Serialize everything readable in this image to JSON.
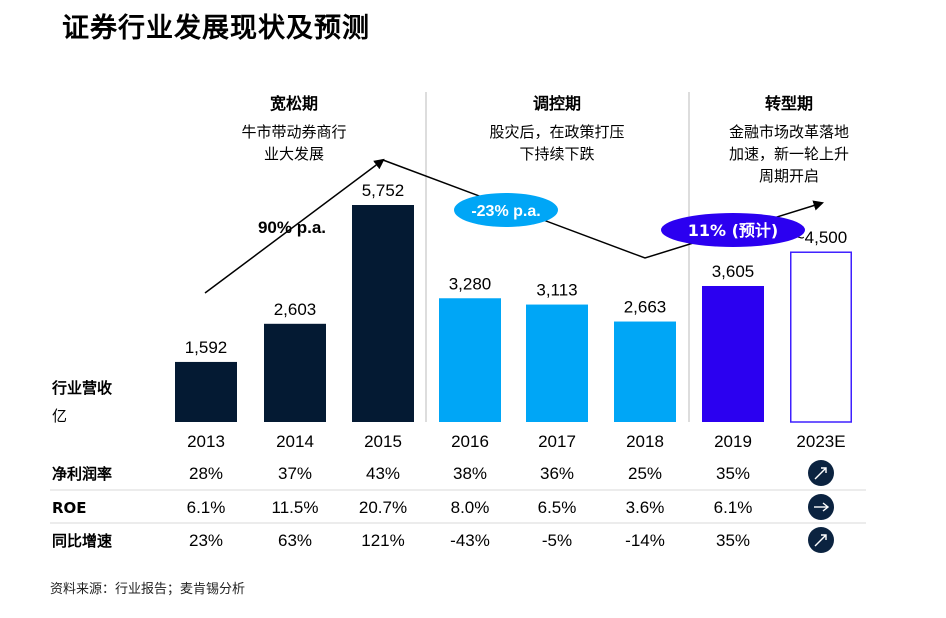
{
  "title": "证券行业发展现状及预测",
  "source": "资料来源：行业报告；麦肯锡分析",
  "colors": {
    "dark": "#041A33",
    "light": "#00A6F6",
    "forecast": "#2B00F0",
    "outline": "#3F20FF",
    "grey_line": "#BBBBBB"
  },
  "phases": [
    {
      "name": "宽松期",
      "desc": [
        "牛市带动券商行",
        "业大发展"
      ],
      "rate": "90% p.a."
    },
    {
      "name": "调控期",
      "desc": [
        "股灾后，在政策打压",
        "下持续下跌"
      ],
      "rate": "-23% p.a."
    },
    {
      "name": "转型期",
      "desc": [
        "金融市场改革落地",
        "加速，新一轮上升",
        "周期开启"
      ],
      "rate": "11% (预计)"
    }
  ],
  "chart_data": {
    "type": "bar",
    "ylabel": [
      "行业营收",
      "亿"
    ],
    "categories": [
      "2013",
      "2014",
      "2015",
      "2016",
      "2017",
      "2018",
      "2019",
      "2023E"
    ],
    "values": [
      1592,
      2603,
      5752,
      3280,
      3113,
      2663,
      3605,
      4500
    ],
    "value_labels": [
      "1,592",
      "2,603",
      "5,752",
      "3,280",
      "3,113",
      "2,663",
      "3,605",
      "~4,500"
    ],
    "bar_styles": [
      "dark",
      "dark",
      "dark",
      "light",
      "light",
      "light",
      "forecast",
      "outline"
    ],
    "ylim": [
      0,
      6000
    ]
  },
  "table": {
    "rows": [
      {
        "label": "净利润率",
        "values": [
          "28%",
          "37%",
          "43%",
          "38%",
          "36%",
          "25%",
          "35%"
        ],
        "icon": "arrow-up-right-icon"
      },
      {
        "label": "ROE",
        "values": [
          "6.1%",
          "11.5%",
          "20.7%",
          "8.0%",
          "6.5%",
          "3.6%",
          "6.1%"
        ],
        "icon": "arrow-right-icon"
      },
      {
        "label": "同比增速",
        "values": [
          "23%",
          "63%",
          "121%",
          "-43%",
          "-5%",
          "-14%",
          "35%"
        ],
        "icon": "arrow-up-right-icon"
      }
    ]
  }
}
